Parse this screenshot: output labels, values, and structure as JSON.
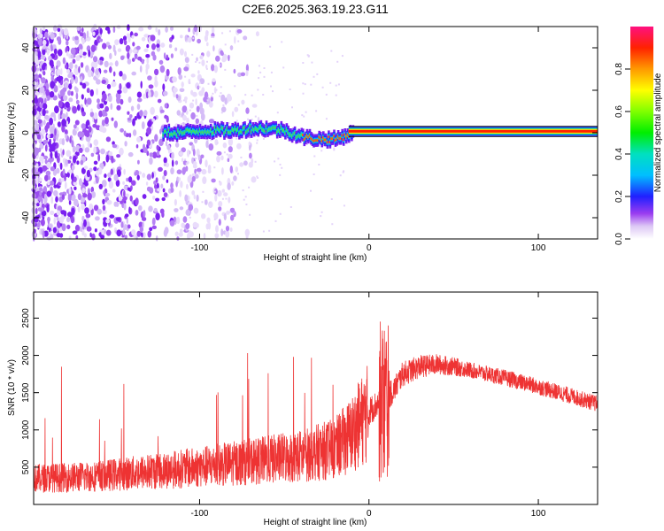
{
  "title": "C2E6.2025.363.19.23.G11",
  "chart_data": [
    {
      "type": "heatmap",
      "xlabel": "Height of straight line (km)",
      "ylabel": "Frequency (Hz)",
      "xlim": [
        -198,
        135
      ],
      "ylim": [
        -50,
        50
      ],
      "xticks": [
        -100,
        0,
        100
      ],
      "xtick_labels": [
        "-100",
        "0",
        "100"
      ],
      "yticks": [
        -40,
        -20,
        0,
        20,
        40
      ],
      "ytick_labels": [
        "-40",
        "-20",
        "0",
        "20",
        "40"
      ],
      "colorbar": {
        "label": "Normalized spectral amplitude",
        "range": [
          0,
          1
        ],
        "ticks": [
          0,
          0.2,
          0.4,
          0.6,
          0.8
        ],
        "tick_labels": [
          "0.0",
          "0.2",
          "0.4",
          "0.6",
          "0.8"
        ]
      },
      "line_trace": {
        "x": [
          -122,
          -110,
          -100,
          -90,
          -80,
          -70,
          -60,
          -50,
          -40,
          -30,
          -20,
          -10,
          0,
          10,
          135
        ],
        "y": [
          0,
          0,
          1,
          1,
          1,
          2,
          2,
          1,
          -2,
          -3,
          -3,
          0,
          0,
          1,
          0
        ]
      }
    },
    {
      "type": "line",
      "xlabel": "Height of straight line (km)",
      "ylabel": "SNR (10 * v/v)",
      "xlim": [
        -198,
        135
      ],
      "ylim": [
        0,
        2850
      ],
      "xticks": [
        -100,
        0,
        100
      ],
      "xtick_labels": [
        "-100",
        "0",
        "100"
      ],
      "yticks": [
        500,
        1000,
        1500,
        2000,
        2500
      ],
      "ytick_labels": [
        "500",
        "1000",
        "1500",
        "2000",
        "2500"
      ],
      "series": [
        {
          "name": "SNR",
          "color": "#ee3333",
          "x": [
            -198,
            -180,
            -160,
            -140,
            -120,
            -100,
            -80,
            -60,
            -40,
            -20,
            -10,
            0,
            5,
            10,
            15,
            20,
            30,
            40,
            50,
            60,
            80,
            100,
            120,
            135
          ],
          "y": [
            350,
            360,
            380,
            420,
            460,
            500,
            550,
            600,
            650,
            750,
            950,
            1250,
            1350,
            1400,
            1550,
            1750,
            1850,
            1880,
            1850,
            1800,
            1700,
            1580,
            1450,
            1350
          ]
        }
      ]
    }
  ]
}
